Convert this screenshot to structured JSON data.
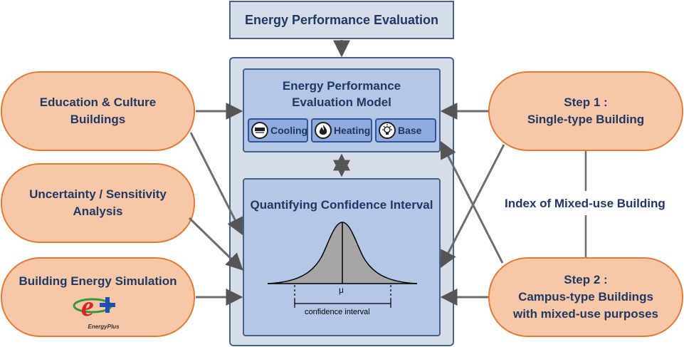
{
  "header": {
    "title": "Energy Performance Evaluation"
  },
  "left": {
    "box1": {
      "line1": "Education & Culture",
      "line2": "Buildings"
    },
    "box2": {
      "line1": "Uncertainty / Sensitivity",
      "line2": "Analysis"
    },
    "box3": {
      "line1": "Building Energy Simulation",
      "logo_text": "EnergyPlus"
    }
  },
  "center": {
    "model": {
      "line1": "Energy Performance",
      "line2": "Evaluation Model"
    },
    "chips": [
      {
        "label": "Cooling",
        "icon": "cooling-icon"
      },
      {
        "label": "Heating",
        "icon": "flame-icon"
      },
      {
        "label": "Base",
        "icon": "bulb-icon"
      }
    ],
    "ci": {
      "title": "Quantifying Confidence Interval",
      "mu": "μ",
      "interval_label": "confidence interval"
    }
  },
  "right": {
    "step1": {
      "line1": "Step 1 :",
      "line2": "Single-type Building"
    },
    "index_label": "Index of Mixed-use Building",
    "step2": {
      "line1": "Step 2 :",
      "line2": "Campus-type Buildings",
      "line3": "with mixed-use purposes"
    }
  },
  "colors": {
    "accent": "#44618c",
    "pill_fill": "#f8c7a8",
    "pill_border": "#e07b39",
    "inner_fill": "#b4c7e7",
    "text": "#1f3864"
  }
}
